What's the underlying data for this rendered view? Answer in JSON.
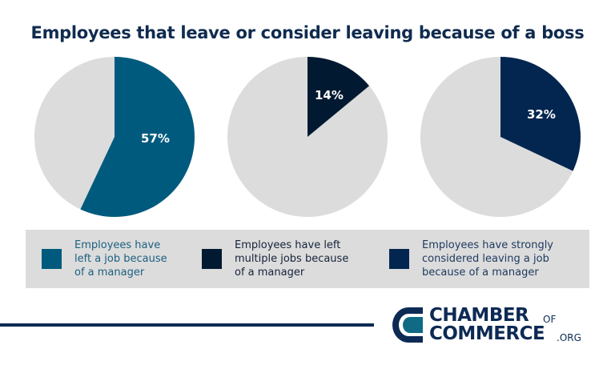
{
  "title": "Employees that leave or consider leaving because of a boss",
  "colors": {
    "slice_1": "#005a7e",
    "slice_2": "#021a31",
    "slice_3": "#022650",
    "remainder": "#dcdcdc",
    "title": "#0f2b4f",
    "legend_bg": "#dcdcdc"
  },
  "pies": [
    {
      "label": "57%",
      "value": 57
    },
    {
      "label": "14%",
      "value": 14
    },
    {
      "label": "32%",
      "value": 32
    }
  ],
  "legend": [
    {
      "text_lines": [
        "Employees have",
        "left a job because",
        "of a manager"
      ],
      "color": "#005a7e",
      "text_color": "#1c5f80"
    },
    {
      "text_lines": [
        "Employees have left",
        "multiple jobs because",
        "of a manager"
      ],
      "color": "#021a31",
      "text_color": "#15233a"
    },
    {
      "text_lines": [
        "Employees have strongly",
        "considered leaving a job",
        "because of a manager"
      ],
      "color": "#022650",
      "text_color": "#1f3a60"
    }
  ],
  "logo": {
    "line1": "CHAMBER",
    "line1_small": "OF",
    "line2": "COMMERCE",
    "line2_small": ".ORG"
  },
  "chart_data": [
    {
      "type": "pie",
      "title": "Employees that leave or consider leaving because of a boss",
      "categories": [
        "Employees have left a job because of a manager",
        "Other"
      ],
      "values": [
        57,
        43
      ],
      "data_labels": [
        "57%"
      ]
    },
    {
      "type": "pie",
      "title": "Employees that leave or consider leaving because of a boss",
      "categories": [
        "Employees have left multiple jobs because of a manager",
        "Other"
      ],
      "values": [
        14,
        86
      ],
      "data_labels": [
        "14%"
      ]
    },
    {
      "type": "pie",
      "title": "Employees that leave or consider leaving because of a boss",
      "categories": [
        "Employees have strongly considered leaving a job because of a manager",
        "Other"
      ],
      "values": [
        32,
        68
      ],
      "data_labels": [
        "32%"
      ]
    }
  ]
}
